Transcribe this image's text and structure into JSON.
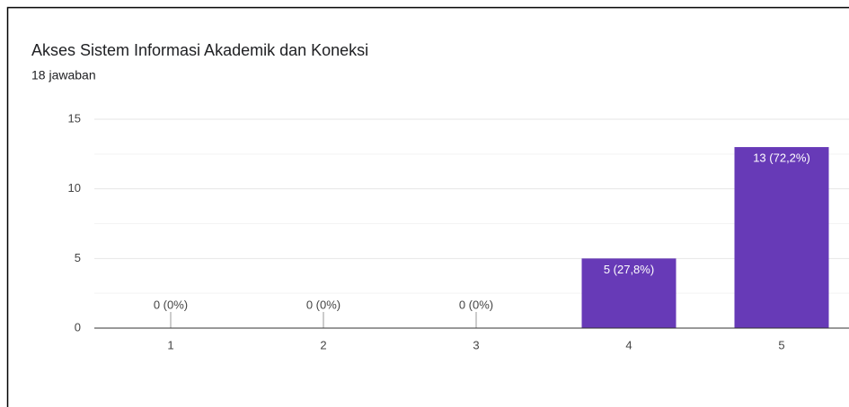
{
  "chart_data": {
    "type": "bar",
    "title": "Akses Sistem Informasi Akademik dan Koneksi",
    "subtitle": "18 jawaban",
    "categories": [
      "1",
      "2",
      "3",
      "4",
      "5"
    ],
    "values": [
      0,
      0,
      0,
      5,
      13
    ],
    "value_labels": [
      "0 (0%)",
      "0 (0%)",
      "0 (0%)",
      "5 (27,8%)",
      "13 (72,2%)"
    ],
    "color": "#673ab7",
    "ylim": [
      0,
      15
    ],
    "yticks": [
      0,
      5,
      10,
      15
    ],
    "grid": true,
    "minor_grid": true
  }
}
